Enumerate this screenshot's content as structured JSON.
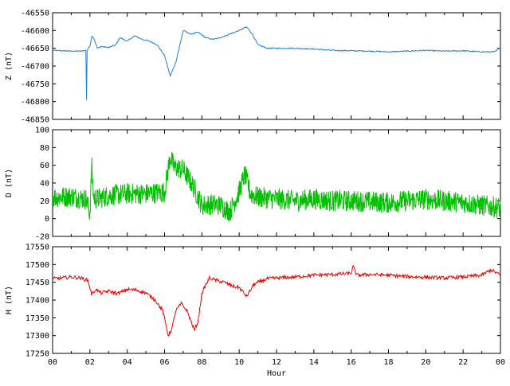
{
  "chart_data": [
    {
      "type": "line",
      "ylabel": "Z (nT)",
      "ylim": [
        -46850,
        -46550
      ],
      "yticks": [
        -46850,
        -46800,
        -46750,
        -46700,
        -46650,
        -46600,
        -46550
      ],
      "xlim": [
        0,
        24
      ],
      "color": "#1e7fd8",
      "series": [
        {
          "x": [
            0,
            0.5,
            1,
            1.5,
            1.8,
            1.82,
            1.84,
            1.9,
            2.0,
            2.1,
            2.2,
            2.4,
            2.6,
            3.0,
            3.4,
            3.6,
            3.8,
            4.0,
            4.4,
            4.8,
            5.2,
            5.6,
            6.0,
            6.3,
            6.6,
            7.0,
            7.4,
            7.8,
            8.2,
            8.6,
            9.0,
            9.5,
            10.0,
            10.4,
            10.7,
            11.0,
            11.5,
            12,
            13,
            14,
            15,
            16,
            17,
            18,
            19,
            20,
            21,
            22,
            23,
            23.7,
            24
          ],
          "y": [
            -46656,
            -46657,
            -46658,
            -46658,
            -46656,
            -46818,
            -46660,
            -46650,
            -46645,
            -46615,
            -46620,
            -46650,
            -46645,
            -46648,
            -46640,
            -46620,
            -46625,
            -46630,
            -46615,
            -46625,
            -46630,
            -46640,
            -46670,
            -46728,
            -46690,
            -46600,
            -46610,
            -46605,
            -46620,
            -46625,
            -46620,
            -46610,
            -46600,
            -46590,
            -46610,
            -46640,
            -46650,
            -46650,
            -46650,
            -46652,
            -46656,
            -46657,
            -46658,
            -46660,
            -46658,
            -46656,
            -46658,
            -46657,
            -46660,
            -46660,
            -46648
          ]
        }
      ]
    },
    {
      "type": "line",
      "ylabel": "D (nT)",
      "ylim": [
        -20,
        100
      ],
      "yticks": [
        -20,
        0,
        20,
        40,
        60,
        80,
        100
      ],
      "xlim": [
        0,
        24
      ],
      "color": "#00c000",
      "series": [
        {
          "x": [
            0,
            1,
            1.8,
            2.0,
            2.1,
            2.2,
            2.4,
            3,
            4,
            5,
            6,
            6.3,
            6.5,
            7.0,
            7.5,
            8.0,
            8.5,
            9,
            9.5,
            10,
            10.3,
            10.6,
            11,
            12,
            13,
            14,
            15,
            16,
            17,
            18,
            19,
            20,
            21,
            22,
            23,
            24
          ],
          "y": [
            24,
            25,
            22,
            5,
            60,
            24,
            22,
            26,
            28,
            28,
            30,
            70,
            58,
            55,
            38,
            15,
            16,
            15,
            8,
            30,
            50,
            28,
            24,
            22,
            20,
            22,
            20,
            20,
            19,
            18,
            20,
            22,
            20,
            18,
            15,
            12
          ]
        }
      ]
    },
    {
      "type": "line",
      "ylabel": "H (nT)",
      "xlabel": "Hour",
      "ylim": [
        17250,
        17550
      ],
      "yticks": [
        17250,
        17300,
        17350,
        17400,
        17450,
        17500,
        17550
      ],
      "xlim": [
        0,
        24
      ],
      "xticks": [
        "00",
        "02",
        "04",
        "06",
        "08",
        "10",
        "12",
        "14",
        "16",
        "18",
        "20",
        "22",
        "00"
      ],
      "color": "#ee0000",
      "series": [
        {
          "x": [
            0,
            0.5,
            1,
            1.5,
            1.9,
            2.1,
            2.3,
            2.6,
            3.0,
            3.5,
            4.0,
            4.5,
            5.0,
            5.5,
            5.9,
            6.2,
            6.4,
            6.6,
            6.9,
            7.2,
            7.6,
            7.8,
            8.0,
            8.4,
            8.8,
            9.2,
            9.6,
            10.0,
            10.4,
            10.8,
            11.5,
            12,
            13,
            14,
            15,
            16,
            16.1,
            16.3,
            17,
            18,
            19,
            20,
            21,
            22,
            23,
            23.5,
            24
          ],
          "y": [
            17460,
            17462,
            17465,
            17462,
            17455,
            17415,
            17430,
            17420,
            17425,
            17418,
            17430,
            17428,
            17420,
            17400,
            17370,
            17300,
            17320,
            17370,
            17390,
            17370,
            17315,
            17340,
            17420,
            17462,
            17455,
            17450,
            17440,
            17435,
            17410,
            17445,
            17460,
            17462,
            17465,
            17470,
            17472,
            17475,
            17495,
            17470,
            17472,
            17470,
            17466,
            17464,
            17462,
            17465,
            17470,
            17485,
            17470
          ]
        }
      ]
    }
  ]
}
